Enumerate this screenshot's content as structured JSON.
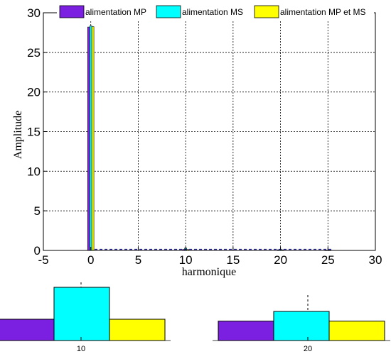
{
  "chart_data": [
    {
      "type": "bar",
      "xlabel": "harmonique",
      "ylabel": "Amplitude",
      "xlim": [
        -5,
        30
      ],
      "ylim": [
        0,
        30
      ],
      "xticks": [
        "-5",
        "0",
        "5",
        "10",
        "15",
        "20",
        "25",
        "30"
      ],
      "yticks": [
        "0",
        "5",
        "10",
        "15",
        "20",
        "25",
        "30"
      ],
      "grid": true,
      "legend_position": "top",
      "categories": [
        0,
        10,
        20,
        25
      ],
      "series": [
        {
          "name": "alimentation MP",
          "color": "#7b1fe0",
          "values": [
            28.2,
            0.12,
            0.08,
            0.01
          ]
        },
        {
          "name": "alimentation MS",
          "color": "#00ffff",
          "values": [
            28.35,
            0.3,
            0.12,
            0.02
          ]
        },
        {
          "name": "alimentation MP et MS",
          "color": "#ffff00",
          "values": [
            28.25,
            0.12,
            0.08,
            0.01
          ]
        }
      ]
    },
    {
      "type": "bar",
      "zoom": "harmonique 10",
      "xlabel": "10",
      "series": [
        {
          "name": "alimentation MP",
          "values": [
            0.12
          ]
        },
        {
          "name": "alimentation MS",
          "values": [
            0.3
          ]
        },
        {
          "name": "alimentation MP et MS",
          "values": [
            0.12
          ]
        }
      ]
    },
    {
      "type": "bar",
      "zoom": "harmonique 20",
      "xlabel": "20",
      "series": [
        {
          "name": "alimentation MP",
          "values": [
            0.08
          ]
        },
        {
          "name": "alimentation MS",
          "values": [
            0.12
          ]
        },
        {
          "name": "alimentation MP et MS",
          "values": [
            0.08
          ]
        }
      ]
    }
  ]
}
